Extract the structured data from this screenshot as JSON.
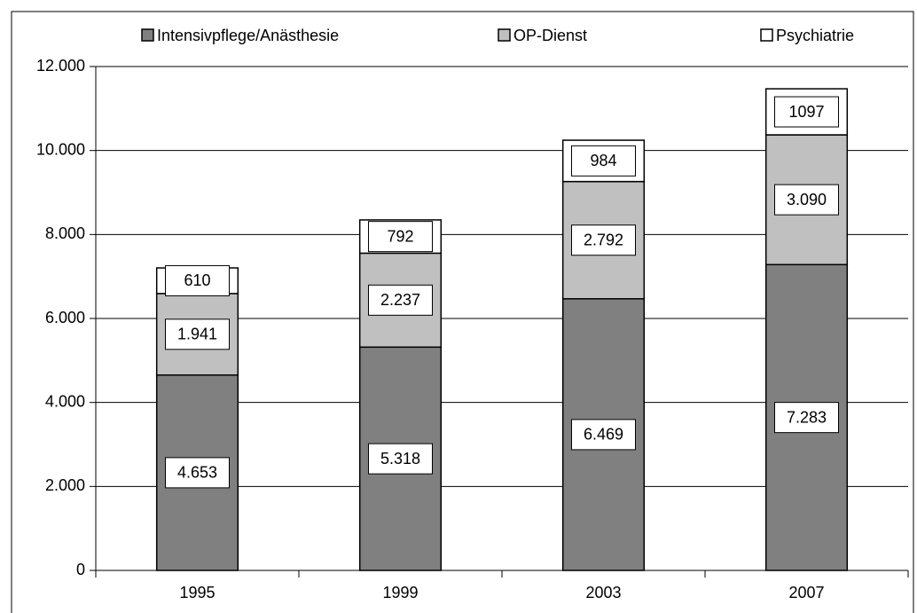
{
  "chart_data": {
    "type": "stacked_bar",
    "categories": [
      "1995",
      "1999",
      "2003",
      "2007"
    ],
    "series": [
      {
        "name": "Intensivpflege/Anästhesie",
        "color": "#808080",
        "values": [
          4653,
          5318,
          6469,
          7283
        ],
        "value_labels": [
          "4.653",
          "5.318",
          "6.469",
          "7.283"
        ]
      },
      {
        "name": "OP-Dienst",
        "color": "#c0c0c0",
        "values": [
          1941,
          2237,
          2792,
          3090
        ],
        "value_labels": [
          "1.941",
          "2.237",
          "2.792",
          "3.090"
        ]
      },
      {
        "name": "Psychiatrie",
        "color": "#ffffff",
        "values": [
          610,
          792,
          984,
          1097
        ]
      }
    ],
    "ylim": [
      0,
      12000
    ],
    "yticks": [
      0,
      {
        "value": 2000,
        "label": "2.000"
      },
      {
        "value": 4000,
        "label": "4.000"
      },
      {
        "value": 6000,
        "label": "6.000"
      },
      {
        "value": 8000,
        "label": "8.000"
      },
      {
        "value": 10000,
        "label": "10.000"
      },
      {
        "value": 12000,
        "label": "12.000"
      }
    ],
    "grid": true,
    "legend": "top"
  }
}
